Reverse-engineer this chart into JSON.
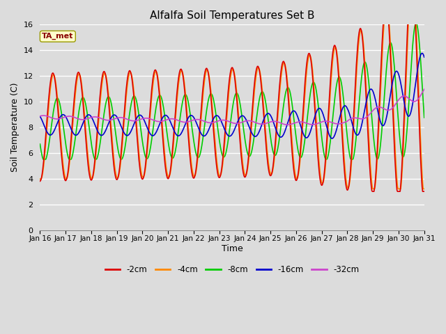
{
  "title": "Alfalfa Soil Temperatures Set B",
  "xlabel": "Time",
  "ylabel": "Soil Temperature (C)",
  "ylim": [
    0,
    16
  ],
  "yticks": [
    0,
    2,
    4,
    6,
    8,
    10,
    12,
    14,
    16
  ],
  "bg_color": "#dcdcdc",
  "grid_color": "#ffffff",
  "series": {
    "neg2cm": {
      "label": "-2cm",
      "color": "#dd0000",
      "lw": 1.2
    },
    "neg4cm": {
      "label": "-4cm",
      "color": "#ff8800",
      "lw": 1.2
    },
    "neg8cm": {
      "label": "-8cm",
      "color": "#00cc00",
      "lw": 1.2
    },
    "neg16cm": {
      "label": "-16cm",
      "color": "#0000cc",
      "lw": 1.2
    },
    "neg32cm": {
      "label": "-32cm",
      "color": "#cc44cc",
      "lw": 1.2
    }
  },
  "annotation_text": "TA_met",
  "annotation_color": "#880000",
  "annotation_bg": "#ffffcc",
  "annotation_border": "#999900",
  "n_days": 15,
  "start_day": 16,
  "start_month": "Jan"
}
